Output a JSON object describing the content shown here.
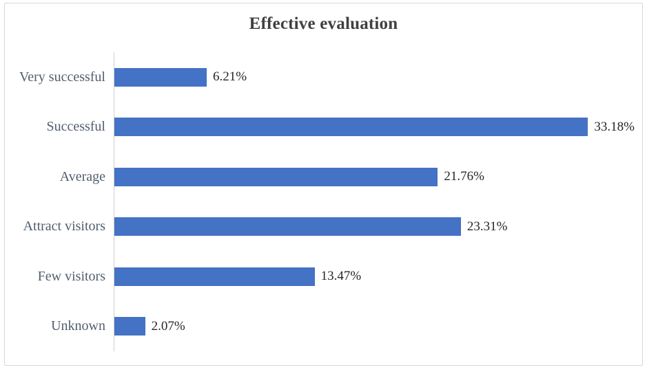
{
  "chart_data": {
    "type": "bar",
    "orientation": "horizontal",
    "title": "Effective evaluation",
    "categories": [
      "Very successful",
      "Successful",
      "Average",
      "Attract visitors",
      "Few visitors",
      "Unknown"
    ],
    "values": [
      6.21,
      33.18,
      21.76,
      23.31,
      13.47,
      2.07
    ],
    "value_labels": [
      "6.21%",
      "33.18%",
      "21.76%",
      "23.31%",
      "13.47%",
      "2.07%"
    ],
    "xlabel": "",
    "ylabel": "",
    "xlim": [
      0,
      35
    ],
    "grid": false,
    "legend": false
  },
  "colors": {
    "bar": "#4472c4",
    "title": "#404040",
    "category_label": "#515e6e",
    "value_label": "#262626",
    "axis_line": "#cfcfcf",
    "frame_border": "#d8d8d8",
    "background": "#ffffff"
  }
}
